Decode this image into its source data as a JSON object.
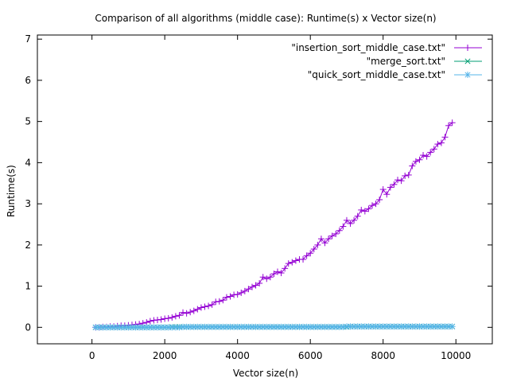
{
  "chart_data": {
    "type": "line",
    "title": "Comparison of all algorithms (middle case): Runtime(s) x Vector size(n)",
    "xlabel": "Vector size(n)",
    "ylabel": "Runtime(s)",
    "xlim": [
      -1500,
      11000
    ],
    "ylim": [
      -0.4,
      7.1
    ],
    "xticks": [
      0,
      2000,
      4000,
      6000,
      8000,
      10000
    ],
    "yticks": [
      0,
      1,
      2,
      3,
      4,
      5,
      6,
      7
    ],
    "grid": false,
    "legend_position": "top-right",
    "series": [
      {
        "name": "\"insertion_sort_middle_case.txt\"",
        "color": "#9400d3",
        "marker": "plus",
        "x": [
          100,
          200,
          300,
          400,
          500,
          600,
          700,
          800,
          900,
          1000,
          1100,
          1200,
          1300,
          1400,
          1500,
          1600,
          1700,
          1800,
          1900,
          2000,
          2100,
          2200,
          2300,
          2400,
          2500,
          2600,
          2700,
          2800,
          2900,
          3000,
          3100,
          3200,
          3300,
          3400,
          3500,
          3600,
          3700,
          3800,
          3900,
          4000,
          4100,
          4200,
          4300,
          4400,
          4500,
          4600,
          4700,
          4800,
          4900,
          5000,
          5100,
          5200,
          5300,
          5400,
          5500,
          5600,
          5700,
          5800,
          5900,
          6000,
          6100,
          6200,
          6300,
          6400,
          6500,
          6600,
          6700,
          6800,
          6900,
          7000,
          7100,
          7200,
          7300,
          7400,
          7500,
          7600,
          7700,
          7800,
          7900,
          8000,
          8100,
          8200,
          8300,
          8400,
          8500,
          8600,
          8700,
          8800,
          8900,
          9000,
          9100,
          9200,
          9300,
          9400,
          9500,
          9600,
          9700,
          9800,
          9900
        ],
        "y": [
          0.0,
          0.0,
          0.01,
          0.01,
          0.02,
          0.02,
          0.03,
          0.04,
          0.04,
          0.05,
          0.06,
          0.07,
          0.08,
          0.1,
          0.12,
          0.15,
          0.17,
          0.18,
          0.19,
          0.21,
          0.22,
          0.24,
          0.27,
          0.29,
          0.36,
          0.34,
          0.37,
          0.4,
          0.44,
          0.48,
          0.5,
          0.52,
          0.55,
          0.62,
          0.63,
          0.66,
          0.73,
          0.75,
          0.79,
          0.8,
          0.84,
          0.88,
          0.93,
          0.98,
          1.02,
          1.07,
          1.22,
          1.18,
          1.22,
          1.3,
          1.35,
          1.32,
          1.43,
          1.55,
          1.58,
          1.62,
          1.65,
          1.65,
          1.74,
          1.8,
          1.9,
          2.0,
          2.15,
          2.05,
          2.15,
          2.22,
          2.27,
          2.35,
          2.45,
          2.6,
          2.52,
          2.6,
          2.7,
          2.85,
          2.82,
          2.88,
          2.96,
          3.0,
          3.1,
          3.35,
          3.23,
          3.4,
          3.47,
          3.58,
          3.56,
          3.68,
          3.7,
          3.92,
          4.03,
          4.07,
          4.18,
          4.15,
          4.25,
          4.33,
          4.45,
          4.48,
          4.62,
          4.9,
          4.97
        ]
      },
      {
        "name": "\"merge_sort.txt\"",
        "color": "#009e73",
        "marker": "cross",
        "x": [
          100,
          200,
          300,
          400,
          500,
          600,
          700,
          800,
          900,
          1000,
          1100,
          1200,
          1300,
          1400,
          1500,
          1600,
          1700,
          1800,
          1900,
          2000,
          2100,
          2200,
          2300,
          2400,
          2500,
          2600,
          2700,
          2800,
          2900,
          3000,
          3100,
          3200,
          3300,
          3400,
          3500,
          3600,
          3700,
          3800,
          3900,
          4000,
          4100,
          4200,
          4300,
          4400,
          4500,
          4600,
          4700,
          4800,
          4900,
          5000,
          5100,
          5200,
          5300,
          5400,
          5500,
          5600,
          5700,
          5800,
          5900,
          6000,
          6100,
          6200,
          6300,
          6400,
          6500,
          6600,
          6700,
          6800,
          6900,
          7000,
          7100,
          7200,
          7300,
          7400,
          7500,
          7600,
          7700,
          7800,
          7900,
          8000,
          8100,
          8200,
          8300,
          8400,
          8500,
          8600,
          8700,
          8800,
          8900,
          9000,
          9100,
          9200,
          9300,
          9400,
          9500,
          9600,
          9700,
          9800,
          9900
        ],
        "y": [
          0.0,
          0.0,
          0.0,
          0.0,
          0.0,
          0.0,
          0.0,
          0.0,
          0.0,
          0.0,
          0.0,
          0.0,
          0.0,
          0.0,
          0.0,
          0.0,
          0.0,
          0.0,
          0.0,
          0.0,
          0.0,
          0.01,
          0.01,
          0.01,
          0.01,
          0.01,
          0.01,
          0.01,
          0.01,
          0.01,
          0.01,
          0.01,
          0.01,
          0.01,
          0.01,
          0.01,
          0.01,
          0.01,
          0.01,
          0.01,
          0.01,
          0.01,
          0.01,
          0.01,
          0.01,
          0.01,
          0.01,
          0.01,
          0.01,
          0.01,
          0.01,
          0.01,
          0.01,
          0.01,
          0.01,
          0.01,
          0.01,
          0.01,
          0.01,
          0.01,
          0.01,
          0.01,
          0.01,
          0.01,
          0.01,
          0.01,
          0.01,
          0.01,
          0.01,
          0.01,
          0.02,
          0.02,
          0.02,
          0.02,
          0.02,
          0.02,
          0.02,
          0.02,
          0.02,
          0.02,
          0.02,
          0.02,
          0.02,
          0.02,
          0.02,
          0.02,
          0.02,
          0.02,
          0.02,
          0.02,
          0.02,
          0.02,
          0.02,
          0.02,
          0.02,
          0.02,
          0.02,
          0.02,
          0.02
        ]
      },
      {
        "name": "\"quick_sort_middle_case.txt\"",
        "color": "#56b4e9",
        "marker": "star",
        "x": [
          100,
          200,
          300,
          400,
          500,
          600,
          700,
          800,
          900,
          1000,
          1100,
          1200,
          1300,
          1400,
          1500,
          1600,
          1700,
          1800,
          1900,
          2000,
          2100,
          2200,
          2300,
          2400,
          2500,
          2600,
          2700,
          2800,
          2900,
          3000,
          3100,
          3200,
          3300,
          3400,
          3500,
          3600,
          3700,
          3800,
          3900,
          4000,
          4100,
          4200,
          4300,
          4400,
          4500,
          4600,
          4700,
          4800,
          4900,
          5000,
          5100,
          5200,
          5300,
          5400,
          5500,
          5600,
          5700,
          5800,
          5900,
          6000,
          6100,
          6200,
          6300,
          6400,
          6500,
          6600,
          6700,
          6800,
          6900,
          7000,
          7100,
          7200,
          7300,
          7400,
          7500,
          7600,
          7700,
          7800,
          7900,
          8000,
          8100,
          8200,
          8300,
          8400,
          8500,
          8600,
          8700,
          8800,
          8900,
          9000,
          9100,
          9200,
          9300,
          9400,
          9500,
          9600,
          9700,
          9800,
          9900
        ],
        "y": [
          0.0,
          0.0,
          0.0,
          0.0,
          0.0,
          0.0,
          0.0,
          0.0,
          0.0,
          0.0,
          0.0,
          0.0,
          0.0,
          0.0,
          0.0,
          0.0,
          0.0,
          0.0,
          0.0,
          0.0,
          0.0,
          0.0,
          0.0,
          0.0,
          0.01,
          0.01,
          0.01,
          0.01,
          0.01,
          0.01,
          0.01,
          0.01,
          0.01,
          0.01,
          0.01,
          0.01,
          0.01,
          0.01,
          0.01,
          0.01,
          0.01,
          0.01,
          0.01,
          0.01,
          0.01,
          0.01,
          0.01,
          0.01,
          0.01,
          0.01,
          0.01,
          0.01,
          0.01,
          0.01,
          0.01,
          0.01,
          0.01,
          0.01,
          0.01,
          0.01,
          0.01,
          0.01,
          0.01,
          0.01,
          0.01,
          0.01,
          0.01,
          0.01,
          0.01,
          0.02,
          0.02,
          0.02,
          0.02,
          0.02,
          0.02,
          0.02,
          0.02,
          0.02,
          0.02,
          0.02,
          0.02,
          0.02,
          0.02,
          0.02,
          0.02,
          0.02,
          0.02,
          0.02,
          0.02,
          0.02,
          0.02,
          0.02,
          0.02,
          0.02,
          0.02,
          0.02,
          0.02,
          0.02,
          0.02
        ]
      }
    ]
  }
}
